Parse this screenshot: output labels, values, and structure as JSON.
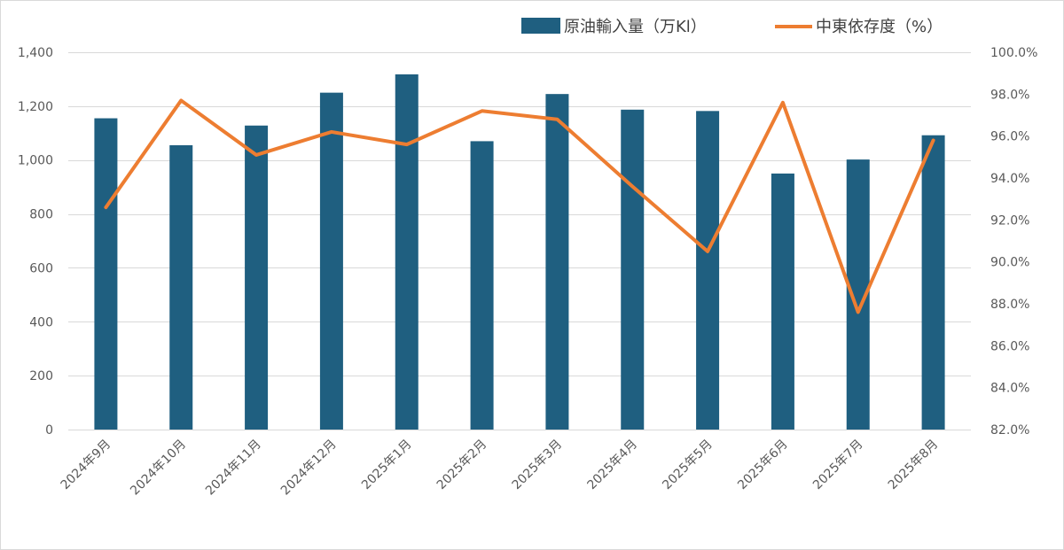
{
  "chart_data": {
    "type": "bar",
    "title": "",
    "categories": [
      "2024年9月",
      "2024年10月",
      "2024年11月",
      "2024年12月",
      "2025年1月",
      "2025年2月",
      "2025年3月",
      "2025年4月",
      "2025年5月",
      "2025年6月",
      "2025年7月",
      "2025年8月"
    ],
    "series": [
      {
        "name": "原油輸入量（万Kl）",
        "type": "bar",
        "axis": "left",
        "color": "#1f5f80",
        "values": [
          1155,
          1055,
          1128,
          1250,
          1318,
          1070,
          1245,
          1187,
          1182,
          950,
          1002,
          1092
        ]
      },
      {
        "name": "中東依存度（%）",
        "type": "line",
        "axis": "right",
        "color": "#ed7d31",
        "values": [
          92.6,
          97.7,
          95.1,
          96.2,
          95.6,
          97.2,
          96.8,
          93.6,
          90.5,
          97.6,
          87.6,
          95.8
        ]
      }
    ],
    "y_left": {
      "ylim": [
        0,
        1400
      ],
      "ticks": [
        0,
        200,
        400,
        600,
        800,
        1000,
        1200,
        1400
      ],
      "tick_labels": [
        "0",
        "200",
        "400",
        "600",
        "800",
        "1,000",
        "1,200",
        "1,400"
      ]
    },
    "y_right": {
      "ylim": [
        82,
        100
      ],
      "ticks": [
        82,
        84,
        86,
        88,
        90,
        92,
        94,
        96,
        98,
        100
      ],
      "tick_labels": [
        "82.0%",
        "84.0%",
        "86.0%",
        "88.0%",
        "90.0%",
        "92.0%",
        "94.0%",
        "96.0%",
        "98.0%",
        "100.0%"
      ]
    },
    "grid": true,
    "legend_position": "top-right"
  }
}
